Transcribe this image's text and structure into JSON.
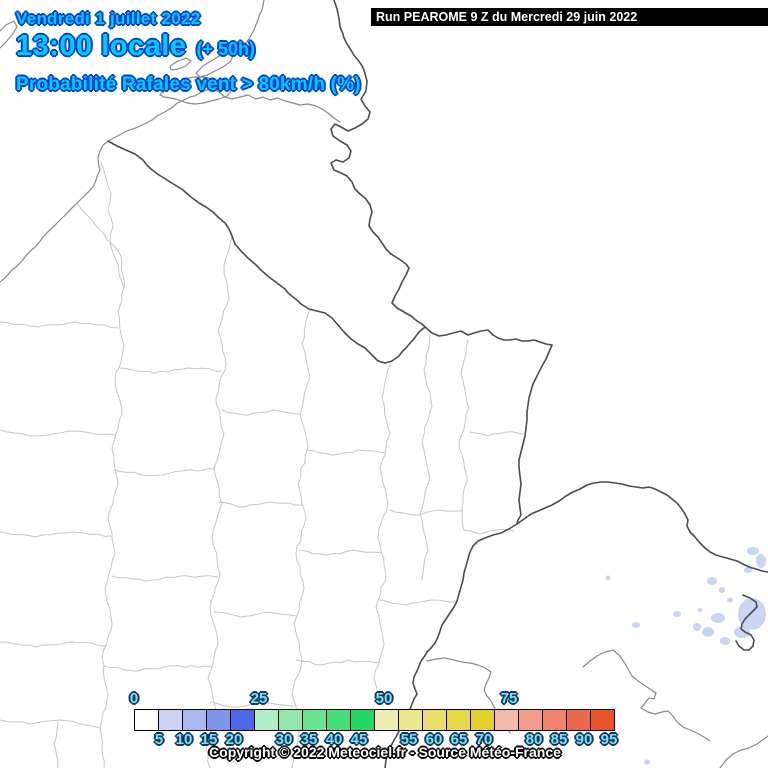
{
  "header": {
    "date": "Vendredi 1 juillet 2022",
    "time": "13:00 locale",
    "offset": "(+ 50h)",
    "variable": "Probabilité Rafales vent > 80km/h (%)"
  },
  "run_banner": {
    "text": "Run PEAROME 9 Z du Mercredi 29 juin 2022"
  },
  "legend": {
    "major_ticks": [
      0,
      25,
      50,
      75
    ],
    "minor_ticks": [
      5,
      10,
      15,
      20,
      30,
      35,
      40,
      45,
      55,
      60,
      65,
      70,
      80,
      85,
      90,
      95
    ],
    "box_ranges": [
      "0-5",
      "5-10",
      "10-15",
      "15-20",
      "20-25",
      "25-30",
      "30-35",
      "35-40",
      "40-45",
      "45-50",
      "50-55",
      "55-60",
      "60-65",
      "65-70",
      "70-75",
      "75-80",
      "80-85",
      "85-90",
      "90-95",
      "95-100"
    ],
    "box_colors": [
      "#ffffff",
      "#ccd4f6",
      "#aab6ef",
      "#8095e8",
      "#4d68e8",
      "#b4eec5",
      "#90e9ab",
      "#6ce392",
      "#47de79",
      "#23d862",
      "#efedb2",
      "#ece88e",
      "#eae06b",
      "#e8d94a",
      "#e6d02b",
      "#f4b9a9",
      "#f19d89",
      "#ee826a",
      "#eb6a4c",
      "#e8532b"
    ]
  },
  "copyright": "Copyright © 2022 Meteociel.fr - Source Météo-France",
  "colors": {
    "header_fill": "#00ccff",
    "header_outline": "#0043d0",
    "tick_fill": "#72e6f2",
    "tick_outline": "#1a3560",
    "copyright_fill": "#ffffff",
    "copyright_outline": "#0a0a0a",
    "country_border": "#4d4d4d",
    "coast_line": "#8a8a8a",
    "department_line": "#c6c6c6",
    "probability_patch": "#c9d5f2"
  }
}
